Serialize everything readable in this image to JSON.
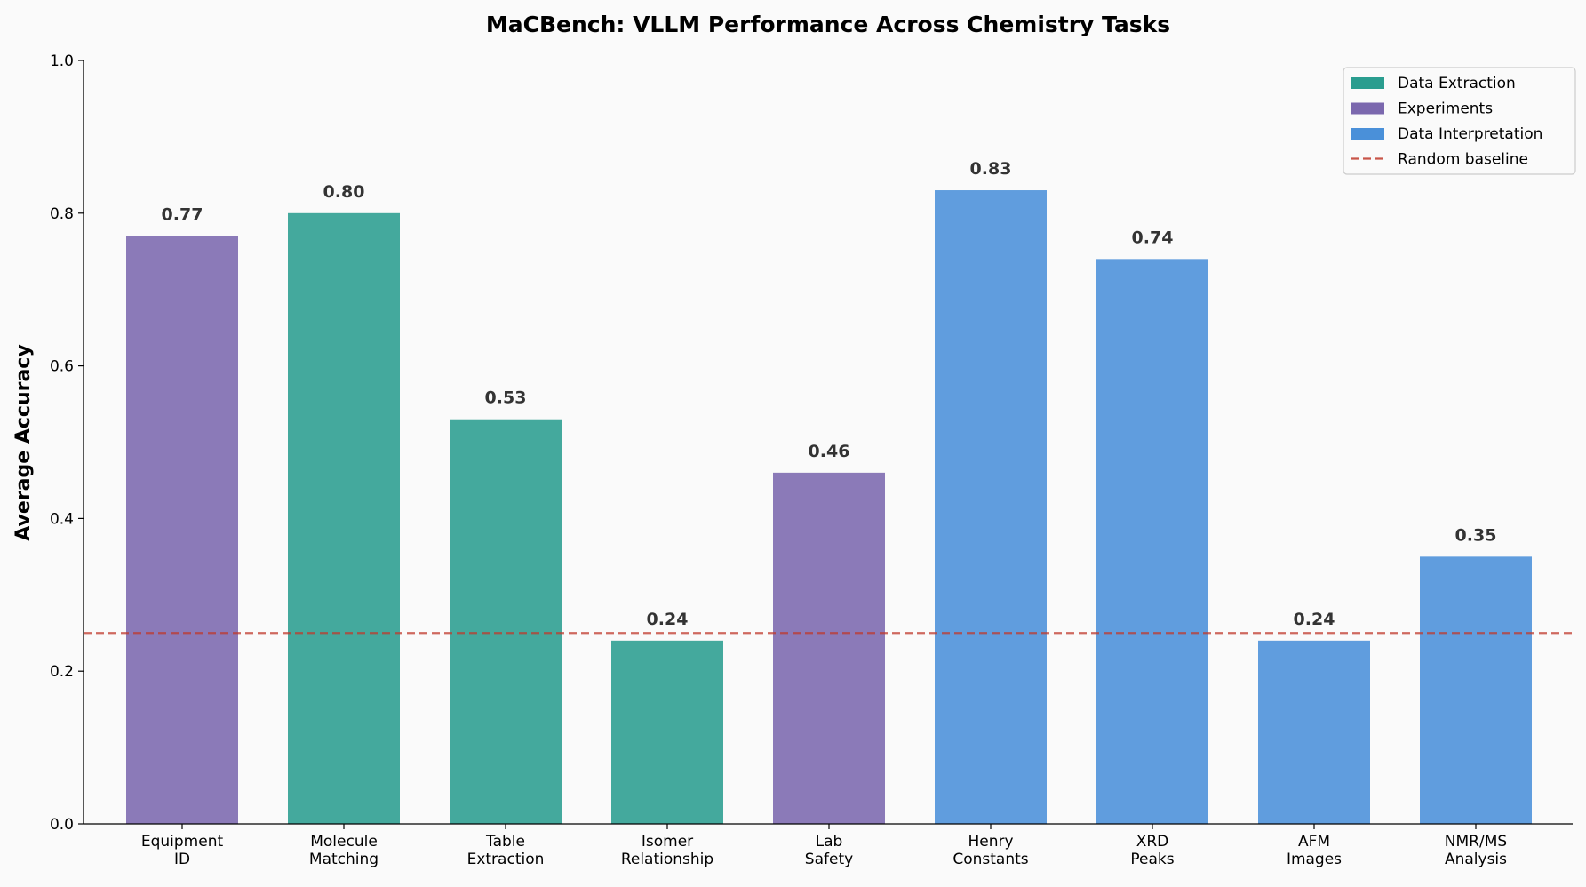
{
  "chart_data": {
    "type": "bar",
    "title": "MaCBench: VLLM Performance Across Chemistry Tasks",
    "xlabel": "",
    "ylabel": "Average Accuracy",
    "ylim": [
      0,
      1.0
    ],
    "yticks": [
      "0.0",
      "0.2",
      "0.4",
      "0.6",
      "0.8",
      "1.0"
    ],
    "grid": false,
    "legend_position": "top-right",
    "categories": [
      [
        "Equipment",
        "ID"
      ],
      [
        "Molecule",
        "Matching"
      ],
      [
        "Table",
        "Extraction"
      ],
      [
        "Isomer",
        "Relationship"
      ],
      [
        "Lab",
        "Safety"
      ],
      [
        "Henry",
        "Constants"
      ],
      [
        "XRD",
        "Peaks"
      ],
      [
        "AFM",
        "Images"
      ],
      [
        "NMR/MS",
        "Analysis"
      ]
    ],
    "values": [
      0.77,
      0.8,
      0.53,
      0.24,
      0.46,
      0.83,
      0.74,
      0.24,
      0.35
    ],
    "data_labels": [
      "0.77",
      "0.80",
      "0.53",
      "0.24",
      "0.46",
      "0.83",
      "0.74",
      "0.24",
      "0.35"
    ],
    "groups": [
      "Experiments",
      "Data Extraction",
      "Data Extraction",
      "Data Extraction",
      "Experiments",
      "Data Interpretation",
      "Data Interpretation",
      "Data Interpretation",
      "Data Interpretation"
    ],
    "group_colors": {
      "Data Extraction": "#2a9d8f",
      "Experiments": "#7b68ae",
      "Data Interpretation": "#4a90d9"
    },
    "baseline": {
      "name": "Random baseline",
      "value": 0.25,
      "color": "#c0392b",
      "style": "dashed"
    },
    "legend": [
      "Data Extraction",
      "Experiments",
      "Data Interpretation",
      "Random baseline"
    ]
  }
}
